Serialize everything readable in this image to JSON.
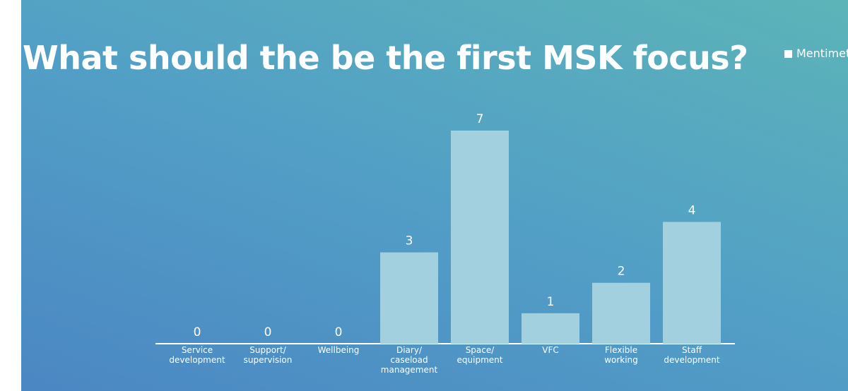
{
  "brand": "Mentimeter",
  "chart_data": {
    "type": "bar",
    "title": "What should the be the first MSK focus?",
    "categories": [
      "Service development",
      "Support/ supervision",
      "Wellbeing",
      "Diary/ caseload management",
      "Space/ equipment",
      "VFC",
      "Flexible working",
      "Staff development"
    ],
    "values": [
      0,
      0,
      0,
      3,
      7,
      1,
      2,
      4
    ],
    "color": "#a2d0df"
  }
}
